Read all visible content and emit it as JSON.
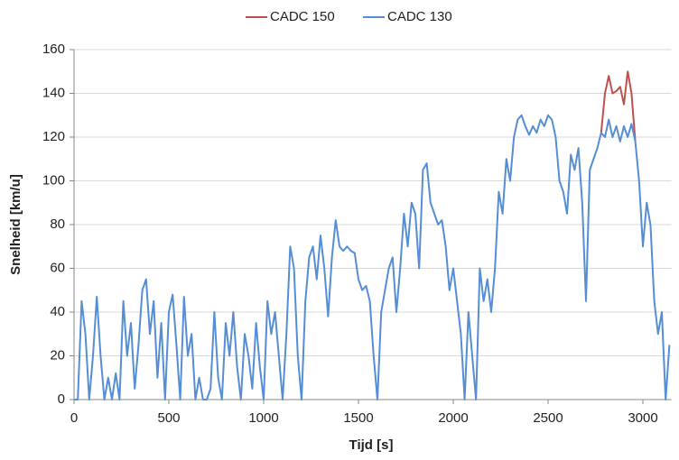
{
  "chart_data": {
    "type": "line",
    "x_label": "Tijd [s]",
    "y_label": "Snelheid [km/u]",
    "x": [
      0,
      20,
      40,
      60,
      80,
      100,
      120,
      140,
      160,
      180,
      200,
      220,
      240,
      260,
      280,
      300,
      320,
      340,
      360,
      380,
      400,
      420,
      440,
      460,
      480,
      500,
      520,
      540,
      560,
      580,
      600,
      620,
      640,
      660,
      680,
      700,
      720,
      740,
      760,
      780,
      800,
      820,
      840,
      860,
      880,
      900,
      920,
      940,
      960,
      980,
      1000,
      1020,
      1040,
      1060,
      1080,
      1100,
      1120,
      1140,
      1160,
      1180,
      1200,
      1220,
      1240,
      1260,
      1280,
      1300,
      1320,
      1340,
      1360,
      1380,
      1400,
      1420,
      1440,
      1460,
      1480,
      1500,
      1520,
      1540,
      1560,
      1580,
      1600,
      1620,
      1640,
      1660,
      1680,
      1700,
      1720,
      1740,
      1760,
      1780,
      1800,
      1820,
      1840,
      1860,
      1880,
      1900,
      1920,
      1940,
      1960,
      1980,
      2000,
      2020,
      2040,
      2060,
      2080,
      2100,
      2120,
      2140,
      2160,
      2180,
      2200,
      2220,
      2240,
      2260,
      2280,
      2300,
      2320,
      2340,
      2360,
      2380,
      2400,
      2420,
      2440,
      2460,
      2480,
      2500,
      2520,
      2540,
      2560,
      2580,
      2600,
      2620,
      2640,
      2660,
      2680,
      2700,
      2720,
      2740,
      2760,
      2780,
      2800,
      2820,
      2840,
      2860,
      2880,
      2900,
      2920,
      2940,
      2960,
      2980,
      3000,
      3020,
      3040,
      3060,
      3080,
      3100,
      3120,
      3140
    ],
    "series": [
      {
        "name": "CADC 150",
        "color": "#c0504d",
        "values": [
          null,
          null,
          null,
          null,
          null,
          null,
          null,
          null,
          null,
          null,
          null,
          null,
          null,
          null,
          null,
          null,
          null,
          null,
          null,
          null,
          null,
          null,
          null,
          null,
          null,
          null,
          null,
          null,
          null,
          null,
          null,
          null,
          null,
          null,
          null,
          null,
          null,
          null,
          null,
          null,
          null,
          null,
          null,
          null,
          null,
          null,
          null,
          null,
          null,
          null,
          null,
          null,
          null,
          null,
          null,
          null,
          null,
          null,
          null,
          null,
          null,
          null,
          null,
          null,
          null,
          null,
          null,
          null,
          null,
          null,
          null,
          null,
          null,
          null,
          null,
          null,
          null,
          null,
          null,
          null,
          null,
          null,
          null,
          null,
          null,
          null,
          null,
          null,
          null,
          null,
          null,
          null,
          null,
          null,
          null,
          null,
          null,
          null,
          null,
          null,
          null,
          null,
          null,
          null,
          null,
          null,
          null,
          null,
          null,
          null,
          null,
          null,
          null,
          null,
          null,
          null,
          null,
          null,
          null,
          null,
          null,
          null,
          null,
          null,
          null,
          null,
          null,
          null,
          null,
          null,
          null,
          null,
          null,
          null,
          null,
          null,
          null,
          null,
          null,
          122,
          140,
          148,
          140,
          141,
          143,
          135,
          150,
          140,
          118,
          null,
          null,
          null,
          null,
          null,
          null,
          null,
          null,
          null
        ]
      },
      {
        "name": "CADC 130",
        "color": "#558ed5",
        "values": [
          0,
          0,
          45,
          30,
          0,
          20,
          47,
          20,
          0,
          10,
          0,
          12,
          0,
          45,
          20,
          35,
          5,
          25,
          50,
          55,
          30,
          45,
          10,
          35,
          0,
          40,
          48,
          25,
          0,
          47,
          20,
          30,
          0,
          10,
          0,
          0,
          5,
          40,
          10,
          0,
          35,
          20,
          40,
          15,
          0,
          30,
          20,
          5,
          35,
          15,
          0,
          45,
          30,
          40,
          20,
          0,
          30,
          70,
          60,
          20,
          0,
          45,
          65,
          70,
          55,
          75,
          60,
          38,
          65,
          82,
          70,
          68,
          70,
          68,
          67,
          55,
          50,
          52,
          45,
          20,
          0,
          40,
          50,
          60,
          65,
          40,
          60,
          85,
          70,
          90,
          85,
          60,
          105,
          108,
          90,
          85,
          80,
          82,
          70,
          50,
          60,
          45,
          30,
          0,
          40,
          20,
          0,
          60,
          45,
          55,
          40,
          60,
          95,
          85,
          110,
          100,
          120,
          128,
          130,
          125,
          121,
          125,
          122,
          128,
          125,
          130,
          128,
          120,
          100,
          95,
          85,
          112,
          105,
          115,
          90,
          45,
          105,
          110,
          115,
          122,
          120,
          128,
          120,
          125,
          118,
          125,
          120,
          126,
          118,
          100,
          70,
          90,
          80,
          45,
          30,
          40,
          0,
          25
        ]
      }
    ],
    "xlim": [
      0,
      3150
    ],
    "ylim": [
      0,
      160
    ],
    "xticks": [
      0,
      500,
      1000,
      1500,
      2000,
      2500,
      3000
    ],
    "yticks": [
      0,
      20,
      40,
      60,
      80,
      100,
      120,
      140,
      160
    ],
    "grid": true,
    "legend": "top"
  }
}
